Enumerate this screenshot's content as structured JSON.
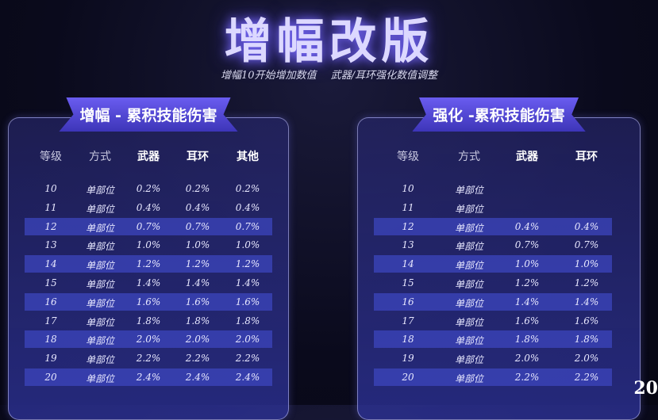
{
  "title": "增幅改版",
  "subtitle": "增幅10开始增加数值 武器/耳环强化数值调整",
  "left": {
    "heading": "增幅 - 累积技能伤害",
    "columns": [
      "等级",
      "方式",
      "武器",
      "耳环",
      "其他"
    ],
    "rows": [
      [
        "10",
        "单部位",
        "0.2%",
        "0.2%",
        "0.2%"
      ],
      [
        "11",
        "单部位",
        "0.4%",
        "0.4%",
        "0.4%"
      ],
      [
        "12",
        "单部位",
        "0.7%",
        "0.7%",
        "0.7%"
      ],
      [
        "13",
        "单部位",
        "1.0%",
        "1.0%",
        "1.0%"
      ],
      [
        "14",
        "单部位",
        "1.2%",
        "1.2%",
        "1.2%"
      ],
      [
        "15",
        "单部位",
        "1.4%",
        "1.4%",
        "1.4%"
      ],
      [
        "16",
        "单部位",
        "1.6%",
        "1.6%",
        "1.6%"
      ],
      [
        "17",
        "单部位",
        "1.8%",
        "1.8%",
        "1.8%"
      ],
      [
        "18",
        "单部位",
        "2.0%",
        "2.0%",
        "2.0%"
      ],
      [
        "19",
        "单部位",
        "2.2%",
        "2.2%",
        "2.2%"
      ],
      [
        "20",
        "单部位",
        "2.4%",
        "2.4%",
        "2.4%"
      ]
    ]
  },
  "right": {
    "heading": "强化 -累积技能伤害",
    "columns": [
      "等级",
      "方式",
      "武器",
      "耳环"
    ],
    "rows": [
      [
        "10",
        "单部位",
        "",
        ""
      ],
      [
        "11",
        "单部位",
        "",
        ""
      ],
      [
        "12",
        "单部位",
        "0.4%",
        "0.4%"
      ],
      [
        "13",
        "单部位",
        "0.7%",
        "0.7%"
      ],
      [
        "14",
        "单部位",
        "1.0%",
        "1.0%"
      ],
      [
        "15",
        "单部位",
        "1.2%",
        "1.2%"
      ],
      [
        "16",
        "单部位",
        "1.4%",
        "1.4%"
      ],
      [
        "17",
        "单部位",
        "1.6%",
        "1.6%"
      ],
      [
        "18",
        "单部位",
        "1.8%",
        "1.8%"
      ],
      [
        "19",
        "单部位",
        "2.0%",
        "2.0%"
      ],
      [
        "20",
        "单部位",
        "2.2%",
        "2.2%"
      ]
    ]
  },
  "corner_text": "20"
}
